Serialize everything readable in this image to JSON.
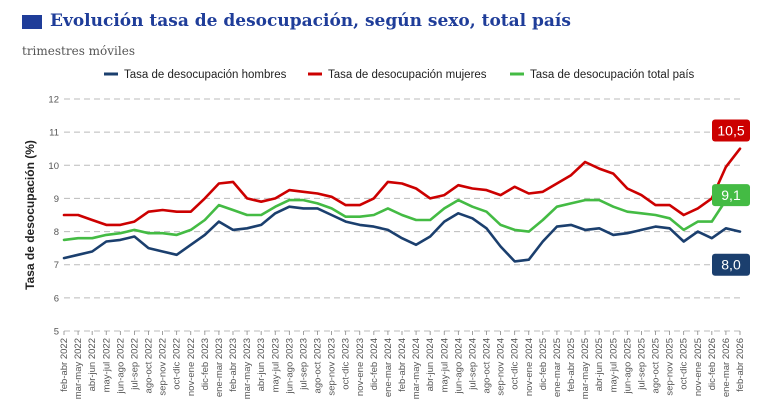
{
  "header": {
    "title": "Evolución tasa de desocupación, según sexo, total país",
    "subtitle": "trimestres móviles",
    "accent_color": "#1f3d99"
  },
  "chart_data": {
    "type": "line",
    "title": "Evolución tasa de desocupación, según sexo, total país",
    "subtitle": "trimestres móviles",
    "xlabel": "",
    "ylabel": "Tasa de desocupación (%)",
    "ylim": [
      5,
      12
    ],
    "yticks": [
      5,
      6,
      7,
      8,
      9,
      10,
      11,
      12
    ],
    "grid": "horizontal dashed",
    "legend_position": "top",
    "categories": [
      "feb-abr 2022",
      "mar-may 2022",
      "abr-jun 2022",
      "may-jul 2022",
      "jun-ago 2022",
      "jul-sep 2022",
      "ago-oct 2022",
      "sep-nov 2022",
      "oct-dic 2022",
      "nov-ene 2022",
      "dic-feb 2023",
      "ene-mar 2023",
      "feb-abr 2023",
      "mar-may 2023",
      "abr-jun 2023",
      "may-jul 2023",
      "jun-ago 2023",
      "jul-sep 2023",
      "ago-oct 2023",
      "sep-nov 2023",
      "oct-dic 2023",
      "nov-ene 2023",
      "dic-feb 2024",
      "ene-mar 2024",
      "feb-abr 2024",
      "mar-may 2024",
      "abr-jun 2024",
      "may-jul 2024",
      "jun-ago 2024",
      "jul-sep 2024",
      "ago-oct 2024",
      "sep-nov 2024",
      "oct-dic 2024",
      "nov-ene 2024",
      "dic-feb 2025",
      "ene-mar 2025",
      "feb-abr 2025",
      "mar-may 2025",
      "abr-jun 2025",
      "may-jul 2025",
      "jun-ago 2025",
      "jul-sep 2025",
      "ago-oct 2025",
      "sep-nov 2025",
      "oct-dic 2025",
      "nov-ene 2025",
      "dic-feb 2026",
      "ene-mar 2026",
      "feb-abr 2026"
    ],
    "series": [
      {
        "name": "Tasa de desocupación hombres",
        "color": "#1b3f6e",
        "values": [
          7.2,
          7.3,
          7.4,
          7.7,
          7.75,
          7.85,
          7.5,
          7.4,
          7.3,
          7.6,
          7.9,
          8.3,
          8.05,
          8.1,
          8.2,
          8.55,
          8.75,
          8.7,
          8.7,
          8.5,
          8.3,
          8.2,
          8.15,
          8.05,
          7.8,
          7.6,
          7.85,
          8.3,
          8.55,
          8.4,
          8.1,
          7.55,
          7.1,
          7.15,
          7.7,
          8.15,
          8.2,
          8.05,
          8.1,
          7.9,
          7.95,
          8.05,
          8.15,
          8.1,
          7.7,
          8.0,
          7.8,
          8.1,
          8.0
        ],
        "end_label": "8,0"
      },
      {
        "name": "Tasa de desocupación mujeres",
        "color": "#cc0000",
        "values": [
          8.5,
          8.5,
          8.35,
          8.2,
          8.2,
          8.3,
          8.6,
          8.65,
          8.6,
          8.6,
          9.0,
          9.45,
          9.5,
          9.0,
          8.9,
          9.0,
          9.25,
          9.2,
          9.15,
          9.05,
          8.8,
          8.8,
          9.0,
          9.5,
          9.45,
          9.3,
          9.0,
          9.1,
          9.4,
          9.3,
          9.25,
          9.1,
          9.35,
          9.15,
          9.2,
          9.45,
          9.7,
          10.1,
          9.9,
          9.75,
          9.3,
          9.1,
          8.8,
          8.8,
          8.5,
          8.7,
          9.0,
          9.95,
          10.5
        ],
        "end_label": "10,5"
      },
      {
        "name": "Tasa de desocupación total país",
        "color": "#44bb44",
        "values": [
          7.75,
          7.8,
          7.8,
          7.9,
          7.95,
          8.05,
          7.95,
          7.95,
          7.9,
          8.05,
          8.35,
          8.8,
          8.65,
          8.5,
          8.5,
          8.75,
          8.95,
          8.95,
          8.85,
          8.7,
          8.45,
          8.45,
          8.5,
          8.7,
          8.5,
          8.35,
          8.35,
          8.7,
          8.95,
          8.75,
          8.6,
          8.2,
          8.05,
          8.0,
          8.35,
          8.75,
          8.85,
          8.95,
          8.95,
          8.75,
          8.6,
          8.55,
          8.5,
          8.4,
          8.05,
          8.3,
          8.3,
          8.95,
          9.1
        ],
        "end_label": "9,1"
      }
    ]
  }
}
